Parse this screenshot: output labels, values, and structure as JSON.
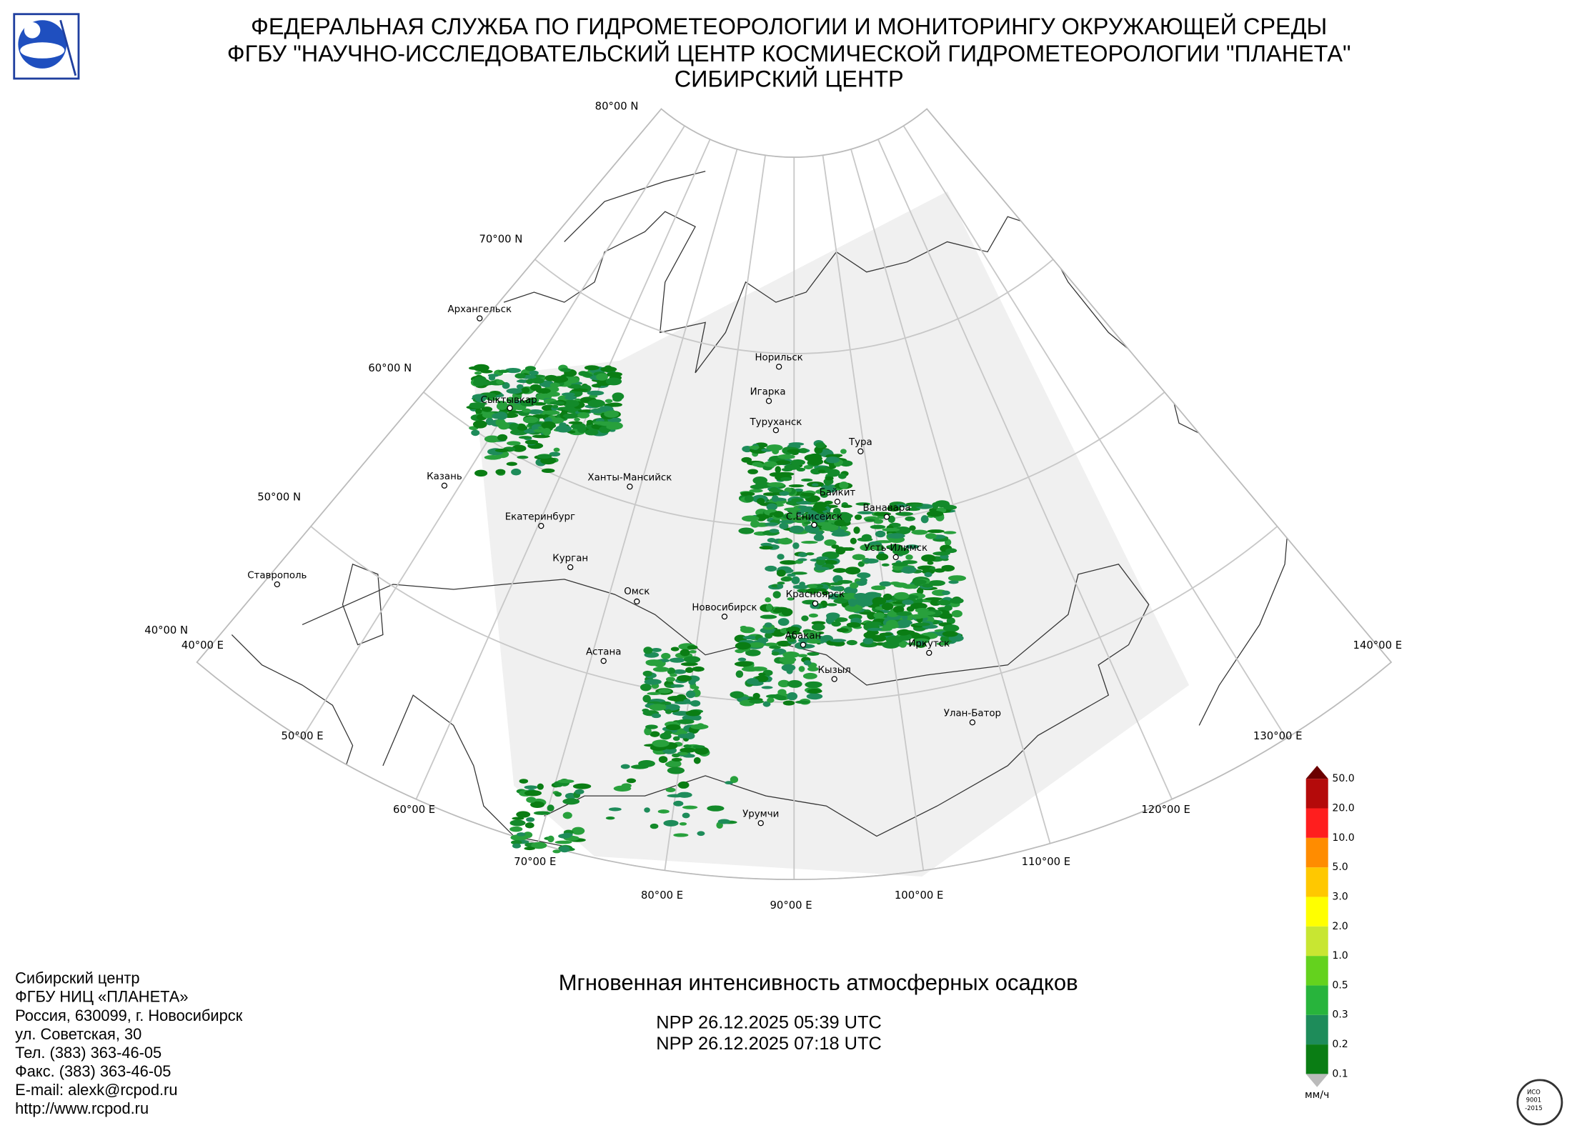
{
  "header": {
    "lines": [
      "ФЕДЕРАЛЬНАЯ СЛУЖБА ПО ГИДРОМЕТЕОРОЛОГИИ И МОНИТОРИНГУ ОКРУЖАЮЩЕЙ СРЕДЫ",
      "ФГБУ \"НАУЧНО-ИССЛЕДОВАТЕЛЬСКИЙ ЦЕНТР КОСМИЧЕСКОЙ ГИДРОМЕТЕОРОЛОГИИ \"ПЛАНЕТА\"",
      "СИБИРСКИЙ ЦЕНТР"
    ]
  },
  "map": {
    "lat_labels": [
      "80°00 N",
      "70°00 N",
      "60°00 N",
      "50°00 N",
      "40°00 N"
    ],
    "lon_labels": [
      "40°00 E",
      "50°00 E",
      "60°00 E",
      "70°00 E",
      "80°00 E",
      "90°00 E",
      "100°00 E",
      "110°00 E",
      "120°00 E",
      "130°00 E",
      "140°00 E"
    ],
    "cities": [
      "Архангельск",
      "Сыктывкар",
      "Казань",
      "Ханты-Мансийск",
      "Екатеринбург",
      "Курган",
      "Ставрополь",
      "Омск",
      "Новосибирск",
      "Астана",
      "Норильск",
      "Игарка",
      "Туруханск",
      "Тура",
      "Байкит",
      "Ванавара",
      "С.Енисейск",
      "Усть-Илимск",
      "Красноярск",
      "Абакан",
      "Иркутск",
      "Кызыл",
      "Улан-Батор",
      "Урумчи"
    ]
  },
  "title": "Мгновенная интенсивность атмосферных осадков",
  "passes": [
    "NPP 26.12.2025  05:39 UTC",
    "NPP 26.12.2025  07:18 UTC"
  ],
  "contact": [
    "Сибирский центр",
    "ФГБУ НИЦ «ПЛАНЕТА»",
    "Россия, 630099, г. Новосибирск",
    "ул. Советская, 30",
    "Тел. (383) 363-46-05",
    "Факс. (383) 363-46-05",
    "E-mail: alexk@rcpod.ru",
    "http://www.rcpod.ru"
  ],
  "legend": {
    "labels": [
      "0.1",
      "0.2",
      "0.3",
      "0.5",
      "1.0",
      "2.0",
      "3.0",
      "5.0",
      "10.0",
      "20.0",
      "50.0"
    ],
    "colors": [
      "#0a7d14",
      "#1e8c5a",
      "#28b43c",
      "#64d21e",
      "#c8e632",
      "#ffff00",
      "#ffc800",
      "#ff8c00",
      "#ff1e1e",
      "#b40a0a"
    ],
    "unit": "мм/ч"
  },
  "certificate": [
    "ИСО",
    "9001",
    "-2015"
  ]
}
